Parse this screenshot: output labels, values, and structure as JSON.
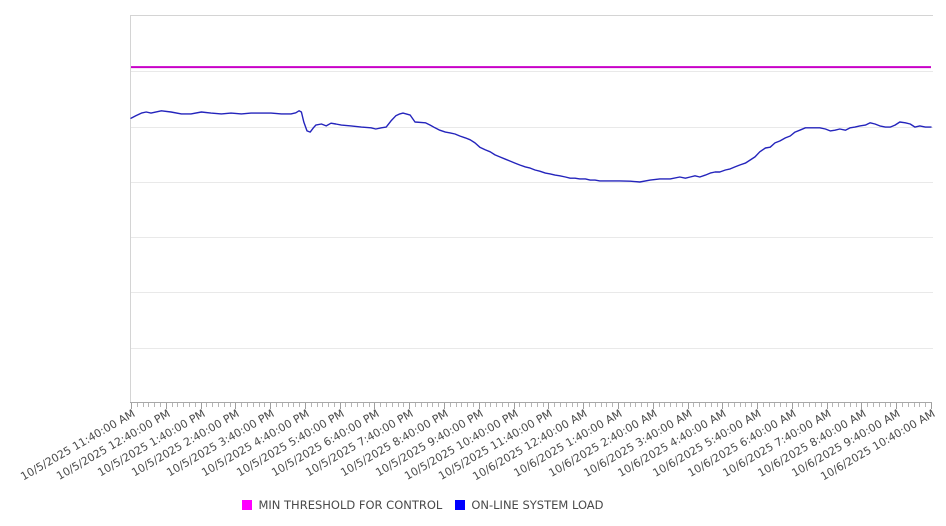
{
  "chart_data": {
    "type": "line",
    "title": "",
    "x_axis": {
      "tick_labels": [
        "10/5/2025 11:40:00 AM",
        "10/5/2025 12:40:00 PM",
        "10/5/2025 1:40:00 PM",
        "10/5/2025 2:40:00 PM",
        "10/5/2025 3:40:00 PM",
        "10/5/2025 4:40:00 PM",
        "10/5/2025 5:40:00 PM",
        "10/5/2025 6:40:00 PM",
        "10/5/2025 7:40:00 PM",
        "10/5/2025 8:40:00 PM",
        "10/5/2025 9:40:00 PM",
        "10/5/2025 10:40:00 PM",
        "10/5/2025 11:40:00 PM",
        "10/6/2025 12:40:00 AM",
        "10/6/2025 1:40:00 AM",
        "10/6/2025 2:40:00 AM",
        "10/6/2025 3:40:00 AM",
        "10/6/2025 4:40:00 AM",
        "10/6/2025 5:40:00 AM",
        "10/6/2025 6:40:00 AM",
        "10/6/2025 7:40:00 AM",
        "10/6/2025 8:40:00 AM",
        "10/6/2025 9:40:00 AM",
        "10/6/2025 10:40:00 AM"
      ],
      "labels_rotation_deg": -30,
      "minor_ticks_per_interval": 6
    },
    "y_axis": {
      "labels_visible": false,
      "gridline_divisions": 7,
      "scale": "percent-of-plot-height (no numeric labels rendered in source image)"
    },
    "series": [
      {
        "name": "MIN THRESHOLD FOR CONTROL",
        "type": "threshold-line",
        "color": "#c800c8",
        "legend_color": "#ff00ff",
        "value_pct": 86.8
      },
      {
        "name": "ON-LINE SYSTEM LOAD",
        "type": "line",
        "color": "#2424bc",
        "legend_color": "#0000ff",
        "points_pct": [
          [
            0,
            73.6
          ],
          [
            0.6,
            74.2
          ],
          [
            1.3,
            74.9
          ],
          [
            1.9,
            75.2
          ],
          [
            2.5,
            74.9
          ],
          [
            3.8,
            75.5
          ],
          [
            5,
            75.2
          ],
          [
            6.3,
            74.7
          ],
          [
            7.5,
            74.7
          ],
          [
            8.8,
            75.2
          ],
          [
            10,
            74.9
          ],
          [
            11.3,
            74.7
          ],
          [
            12.5,
            74.9
          ],
          [
            13.8,
            74.7
          ],
          [
            15,
            74.9
          ],
          [
            16.3,
            74.9
          ],
          [
            17.5,
            74.9
          ],
          [
            18.8,
            74.7
          ],
          [
            20,
            74.7
          ],
          [
            20.6,
            75
          ],
          [
            21,
            75.5
          ],
          [
            21.3,
            75.2
          ],
          [
            21.6,
            72.6
          ],
          [
            22,
            70.3
          ],
          [
            22.4,
            70
          ],
          [
            22.8,
            71.1
          ],
          [
            23.1,
            71.8
          ],
          [
            23.8,
            72.1
          ],
          [
            24.4,
            71.6
          ],
          [
            25,
            72.3
          ],
          [
            25.6,
            72.1
          ],
          [
            26.3,
            71.8
          ],
          [
            27.5,
            71.6
          ],
          [
            28.8,
            71.3
          ],
          [
            30,
            71.1
          ],
          [
            30.6,
            70.8
          ],
          [
            31.3,
            71.1
          ],
          [
            31.9,
            71.3
          ],
          [
            32.5,
            72.9
          ],
          [
            33.1,
            74.2
          ],
          [
            33.6,
            74.7
          ],
          [
            34,
            74.9
          ],
          [
            34.4,
            74.7
          ],
          [
            34.9,
            74.4
          ],
          [
            35.5,
            72.6
          ],
          [
            36.8,
            72.4
          ],
          [
            37.4,
            71.8
          ],
          [
            38,
            71.1
          ],
          [
            38.6,
            70.5
          ],
          [
            39.3,
            70
          ],
          [
            39.9,
            69.8
          ],
          [
            40.5,
            69.5
          ],
          [
            41.1,
            69
          ],
          [
            41.8,
            68.5
          ],
          [
            42.4,
            68
          ],
          [
            43,
            67.2
          ],
          [
            43.6,
            66.1
          ],
          [
            44.3,
            65.4
          ],
          [
            44.9,
            64.9
          ],
          [
            45.5,
            64.1
          ],
          [
            46.1,
            63.6
          ],
          [
            46.8,
            63
          ],
          [
            47.4,
            62.5
          ],
          [
            48,
            62
          ],
          [
            48.6,
            61.5
          ],
          [
            49.3,
            61
          ],
          [
            49.9,
            60.7
          ],
          [
            50.5,
            60.2
          ],
          [
            51.1,
            59.9
          ],
          [
            51.8,
            59.4
          ],
          [
            52.4,
            59.2
          ],
          [
            53,
            58.9
          ],
          [
            53.6,
            58.7
          ],
          [
            54.3,
            58.4
          ],
          [
            54.9,
            58.1
          ],
          [
            55.5,
            58.1
          ],
          [
            56.1,
            57.9
          ],
          [
            56.8,
            57.9
          ],
          [
            57.4,
            57.6
          ],
          [
            58,
            57.6
          ],
          [
            58.6,
            57.4
          ],
          [
            59.9,
            57.4
          ],
          [
            61.1,
            57.4
          ],
          [
            62.4,
            57.3
          ],
          [
            63.6,
            57.1
          ],
          [
            64.9,
            57.6
          ],
          [
            66.1,
            57.9
          ],
          [
            67.4,
            57.9
          ],
          [
            68.6,
            58.4
          ],
          [
            69.3,
            58.1
          ],
          [
            69.9,
            58.4
          ],
          [
            70.5,
            58.7
          ],
          [
            71.1,
            58.4
          ],
          [
            71.8,
            58.9
          ],
          [
            72.4,
            59.4
          ],
          [
            73,
            59.7
          ],
          [
            73.6,
            59.7
          ],
          [
            74.3,
            60.2
          ],
          [
            74.9,
            60.5
          ],
          [
            75.5,
            61
          ],
          [
            76.1,
            61.5
          ],
          [
            76.8,
            62
          ],
          [
            77.4,
            62.8
          ],
          [
            78,
            63.6
          ],
          [
            78.6,
            64.9
          ],
          [
            79.3,
            65.9
          ],
          [
            79.9,
            66.1
          ],
          [
            80.5,
            67.2
          ],
          [
            81.1,
            67.7
          ],
          [
            81.8,
            68.5
          ],
          [
            82.4,
            69
          ],
          [
            83,
            70
          ],
          [
            83.6,
            70.5
          ],
          [
            84.3,
            71.1
          ],
          [
            84.9,
            71.1
          ],
          [
            85.5,
            71.1
          ],
          [
            86.1,
            71.1
          ],
          [
            86.8,
            70.8
          ],
          [
            87.4,
            70.3
          ],
          [
            88,
            70.5
          ],
          [
            88.6,
            70.8
          ],
          [
            89.3,
            70.5
          ],
          [
            89.9,
            71.1
          ],
          [
            90.5,
            71.3
          ],
          [
            91.1,
            71.6
          ],
          [
            91.8,
            71.8
          ],
          [
            92.4,
            72.4
          ],
          [
            93,
            72.1
          ],
          [
            93.6,
            71.6
          ],
          [
            94.3,
            71.3
          ],
          [
            94.9,
            71.3
          ],
          [
            95.5,
            71.8
          ],
          [
            96.1,
            72.6
          ],
          [
            96.8,
            72.4
          ],
          [
            97.4,
            72.1
          ],
          [
            98,
            71.3
          ],
          [
            98.6,
            71.6
          ],
          [
            99.3,
            71.3
          ],
          [
            100,
            71.3
          ]
        ]
      }
    ],
    "legend": {
      "position": "bottom",
      "items": [
        "MIN THRESHOLD FOR CONTROL",
        "ON-LINE SYSTEM LOAD"
      ]
    },
    "grid": {
      "horizontal_gridlines": true,
      "vertical_gridlines": false,
      "gridline_color": "#e9e9e9"
    }
  }
}
